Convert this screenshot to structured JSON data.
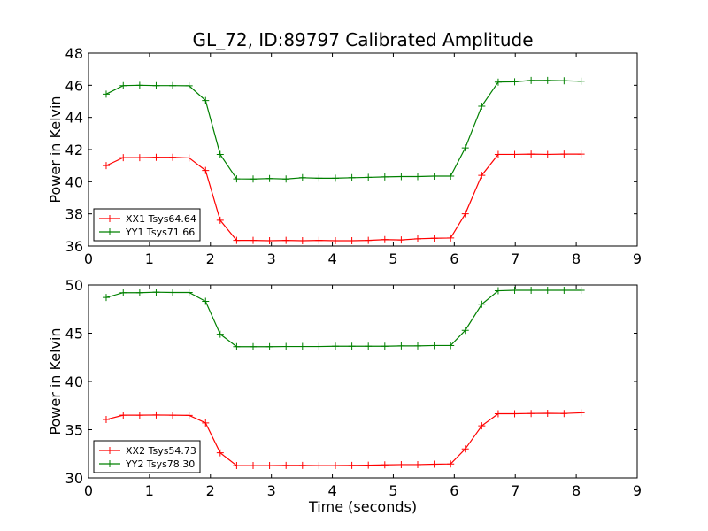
{
  "chart_data": [
    {
      "type": "line",
      "title": "GL_72, ID:89797 Calibrated Amplitude",
      "xlabel": "",
      "ylabel": "Power in Kelvin",
      "xlim": [
        0,
        9
      ],
      "ylim": [
        36,
        48
      ],
      "xticks": [
        "0",
        "1",
        "2",
        "3",
        "4",
        "5",
        "6",
        "7",
        "8",
        "9"
      ],
      "yticks": [
        "36",
        "38",
        "40",
        "42",
        "44",
        "46",
        "48"
      ],
      "legend_position": "lower-left",
      "x": [
        0.29,
        0.57,
        0.84,
        1.11,
        1.38,
        1.65,
        1.92,
        2.16,
        2.43,
        2.7,
        2.97,
        3.24,
        3.51,
        3.78,
        4.05,
        4.32,
        4.59,
        4.86,
        5.13,
        5.4,
        5.67,
        5.94,
        6.18,
        6.45,
        6.72,
        6.99,
        7.26,
        7.53,
        7.8,
        8.08
      ],
      "series": [
        {
          "name": "XX1 Tsys64.64",
          "color": "#ff0000",
          "values": [
            41.0,
            41.5,
            41.5,
            41.52,
            41.52,
            41.48,
            40.7,
            37.6,
            36.35,
            36.35,
            36.33,
            36.35,
            36.33,
            36.35,
            36.33,
            36.33,
            36.35,
            36.4,
            36.38,
            36.45,
            36.48,
            36.5,
            38.0,
            40.4,
            41.7,
            41.7,
            41.72,
            41.7,
            41.72,
            41.72
          ]
        },
        {
          "name": "YY1 Tsys71.66",
          "color": "#008000",
          "values": [
            45.45,
            45.98,
            46.0,
            45.98,
            45.98,
            45.97,
            45.05,
            41.7,
            40.18,
            40.17,
            40.2,
            40.17,
            40.25,
            40.22,
            40.22,
            40.25,
            40.27,
            40.3,
            40.32,
            40.32,
            40.35,
            40.35,
            42.1,
            44.7,
            46.2,
            46.22,
            46.3,
            46.3,
            46.28,
            46.25
          ]
        }
      ]
    },
    {
      "type": "line",
      "title": "",
      "xlabel": "Time (seconds)",
      "ylabel": "Power in Kelvin",
      "xlim": [
        0,
        9
      ],
      "ylim": [
        30,
        50
      ],
      "xticks": [
        "0",
        "1",
        "2",
        "3",
        "4",
        "5",
        "6",
        "7",
        "8",
        "9"
      ],
      "yticks": [
        "30",
        "35",
        "40",
        "45",
        "50"
      ],
      "legend_position": "lower-left",
      "x": [
        0.29,
        0.57,
        0.84,
        1.11,
        1.38,
        1.65,
        1.92,
        2.16,
        2.43,
        2.7,
        2.97,
        3.24,
        3.51,
        3.78,
        4.05,
        4.32,
        4.59,
        4.86,
        5.13,
        5.4,
        5.67,
        5.94,
        6.18,
        6.45,
        6.72,
        6.99,
        7.26,
        7.53,
        7.8,
        8.08
      ],
      "series": [
        {
          "name": "XX2 Tsys54.73",
          "color": "#ff0000",
          "values": [
            36.05,
            36.5,
            36.5,
            36.52,
            36.5,
            36.48,
            35.7,
            32.6,
            31.28,
            31.28,
            31.28,
            31.3,
            31.3,
            31.28,
            31.28,
            31.3,
            31.32,
            31.35,
            31.38,
            31.38,
            31.42,
            31.45,
            33.0,
            35.4,
            36.65,
            36.65,
            36.68,
            36.7,
            36.68,
            36.75
          ]
        },
        {
          "name": "YY2 Tsys78.30",
          "color": "#008000",
          "values": [
            48.7,
            49.2,
            49.2,
            49.25,
            49.22,
            49.22,
            48.3,
            44.9,
            43.6,
            43.6,
            43.6,
            43.62,
            43.62,
            43.62,
            43.65,
            43.65,
            43.65,
            43.65,
            43.68,
            43.68,
            43.72,
            43.72,
            45.3,
            48.0,
            49.4,
            49.45,
            49.45,
            49.45,
            49.45,
            49.45
          ]
        }
      ]
    }
  ]
}
